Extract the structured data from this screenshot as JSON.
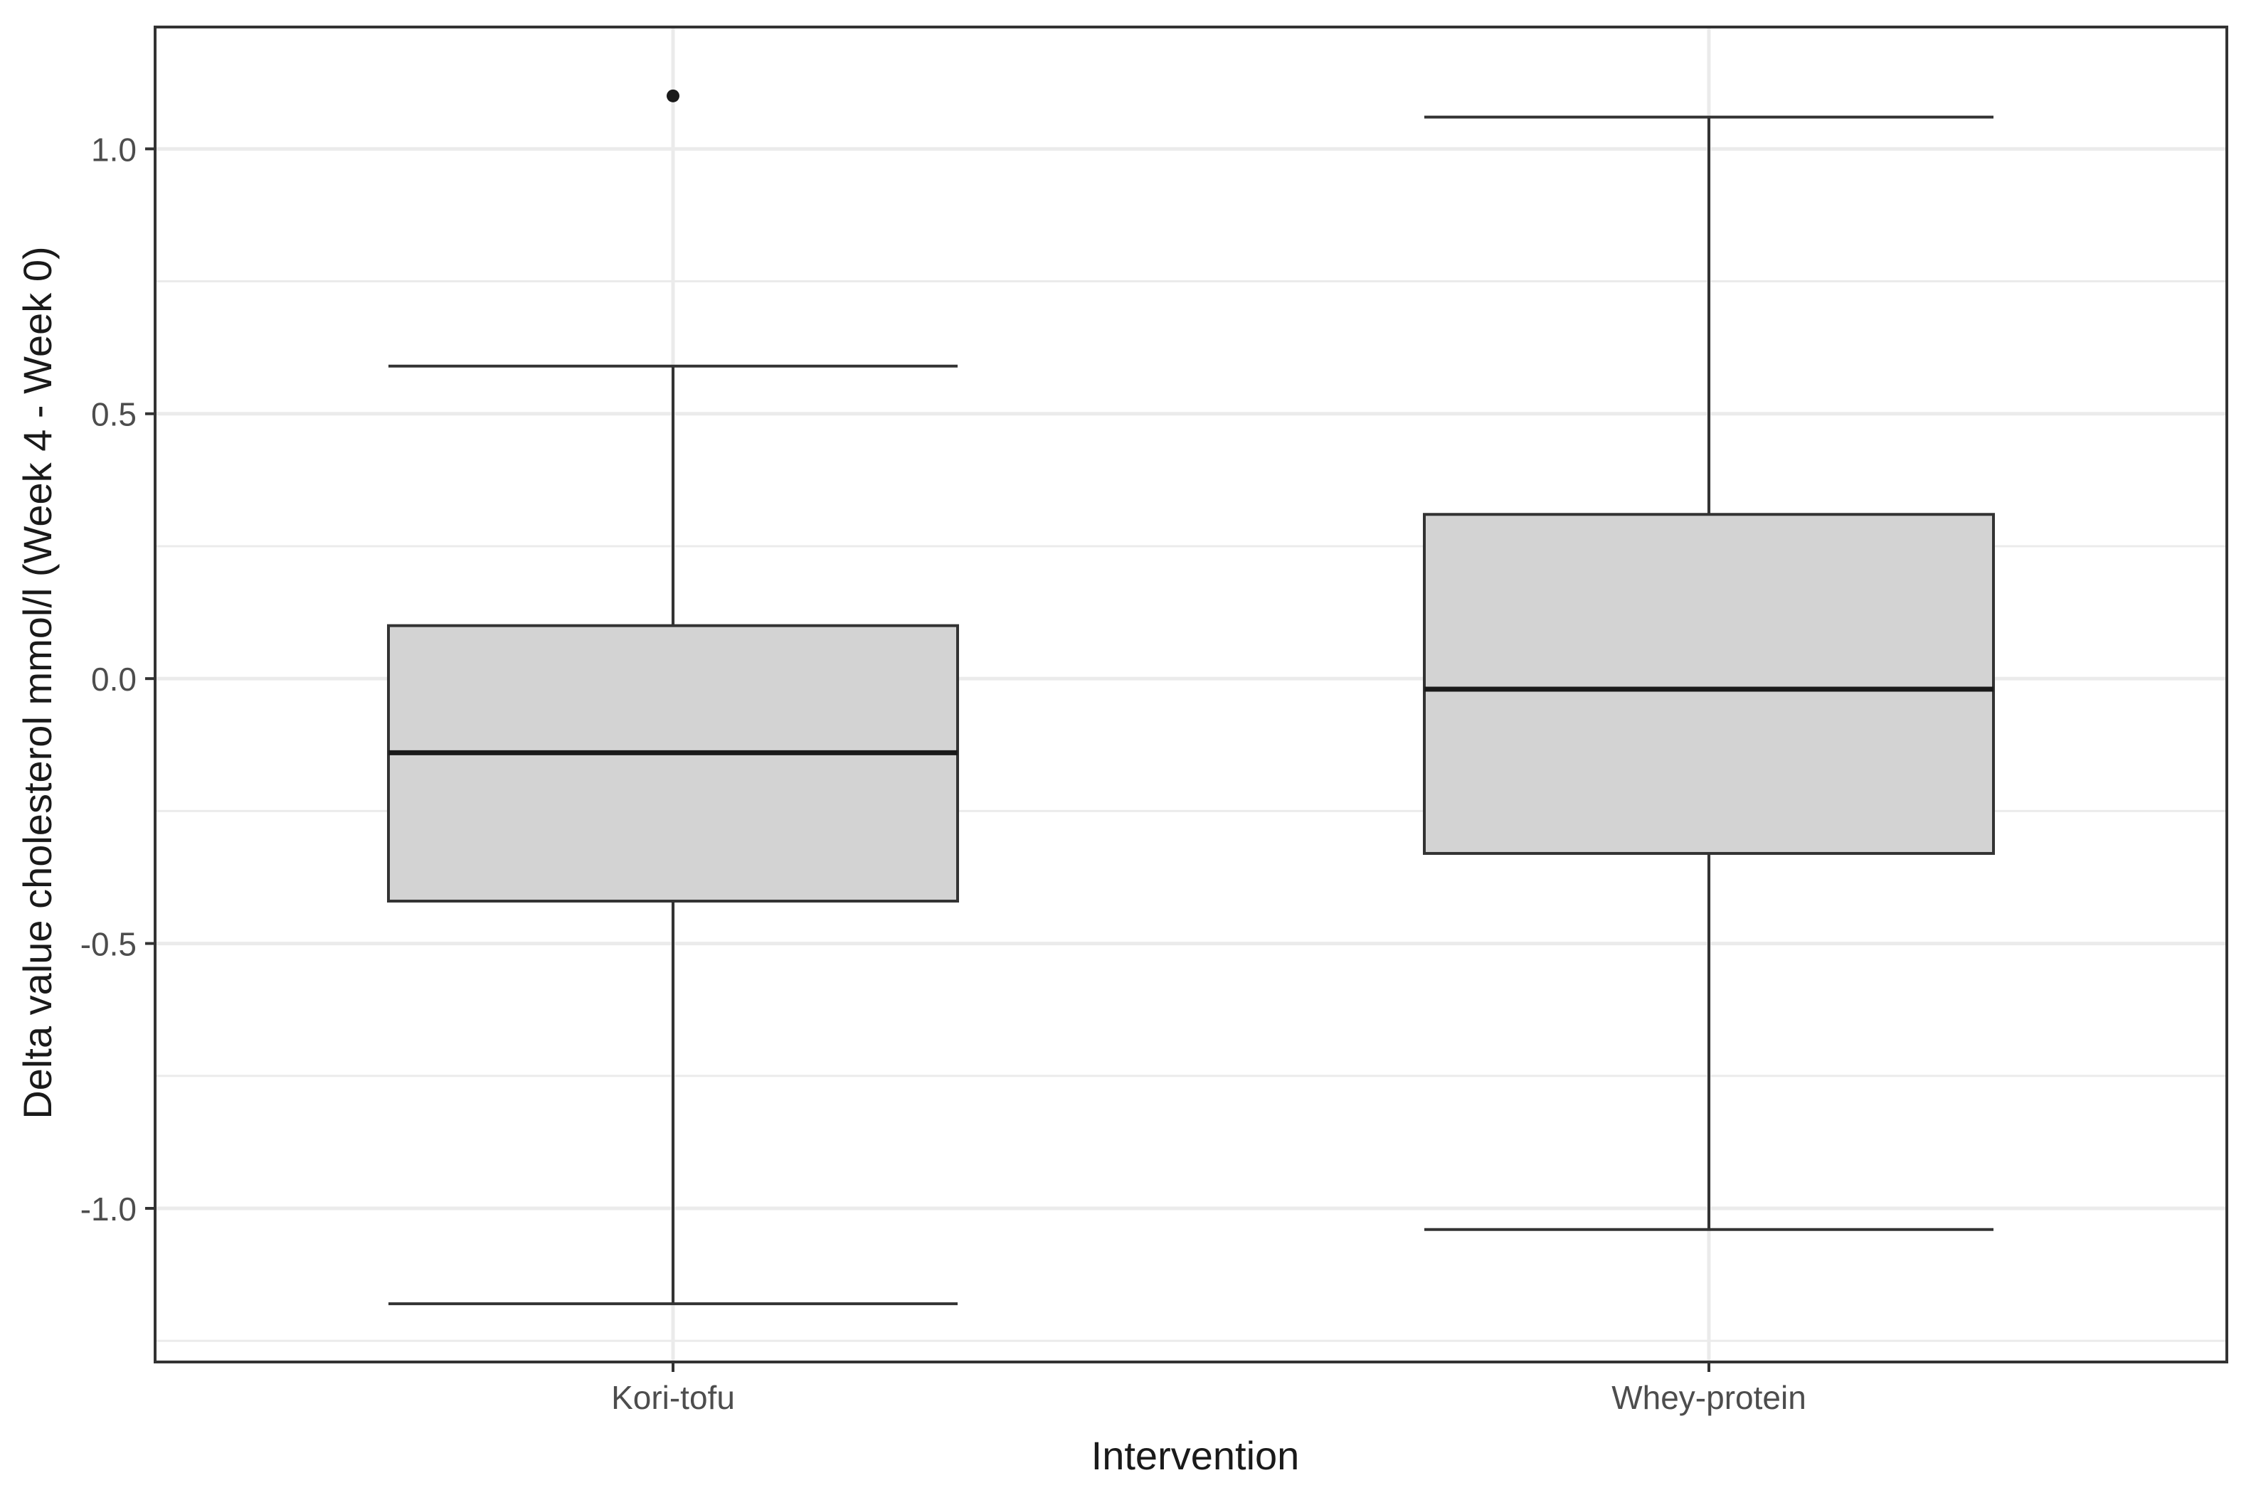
{
  "chart_data": {
    "type": "boxplot",
    "xlabel": "Intervention",
    "ylabel": "Delta value cholesterol mmol/l (Week 4 - Week 0)",
    "ylim": [
      -1.29,
      1.23
    ],
    "y_ticks": [
      -1.0,
      -0.5,
      0.0,
      0.5,
      1.0
    ],
    "y_tick_labels": [
      "-1.0",
      "-0.5",
      "0.0",
      "0.5",
      "1.0"
    ],
    "grid": true,
    "categories": [
      "Kori-tofu",
      "Whey-protein"
    ],
    "boxes": [
      {
        "category": "Kori-tofu",
        "whisker_low": -1.18,
        "q1": -0.42,
        "median": -0.14,
        "q3": 0.1,
        "whisker_high": 0.59,
        "outliers": [
          1.1
        ]
      },
      {
        "category": "Whey-protein",
        "whisker_low": -1.04,
        "q1": -0.33,
        "median": -0.02,
        "q3": 0.31,
        "whisker_high": 1.06,
        "outliers": []
      }
    ],
    "colors": {
      "box_fill": "#d3d3d3",
      "line": "#333333",
      "grid": "#ebebeb",
      "panel_border": "#333333"
    }
  }
}
